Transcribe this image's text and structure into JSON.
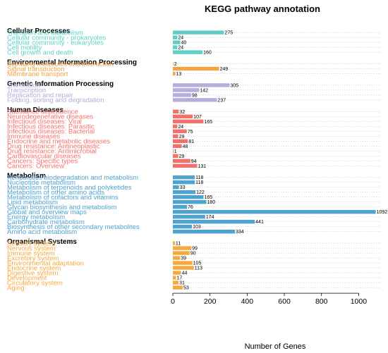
{
  "chart_data": {
    "type": "bar",
    "orientation": "horizontal",
    "title": "KEGG pathway annotation",
    "xlabel": "Number of Genes",
    "ylabel": "",
    "xlim": [
      0,
      1120
    ],
    "xticks": [
      0,
      200,
      400,
      600,
      800,
      1000
    ],
    "grid": "dotted horizontal row lines",
    "legend": "none",
    "groups": [
      {
        "name": "Cellular Processes",
        "color": "#5ecfc4",
        "items": [
          {
            "label": "Transport and catabolism",
            "value": 275
          },
          {
            "label": "Cellular community - prokaryotes",
            "value": 24
          },
          {
            "label": "Cellular community - eukaryotes",
            "value": 40
          },
          {
            "label": "Cell motility",
            "value": 24
          },
          {
            "label": "Cell growth and death",
            "value": 160
          }
        ]
      },
      {
        "name": "Environmental Information Processing",
        "color": "#f3a545",
        "items": [
          {
            "label": "Signaling molecules and interaction",
            "value": 2
          },
          {
            "label": "Signal transduction",
            "value": 249
          },
          {
            "label": "Membrane transport",
            "value": 13
          }
        ]
      },
      {
        "name": "Genetic Information Processing",
        "color": "#b3aedb",
        "items": [
          {
            "label": "Translation",
            "value": 305
          },
          {
            "label": "Transcription",
            "value": 142
          },
          {
            "label": "Replication and repair",
            "value": 98
          },
          {
            "label": "Folding, sorting and degradation",
            "value": 237
          }
        ]
      },
      {
        "name": "Human Diseases",
        "color": "#f4706a",
        "items": [
          {
            "label": "Substance dependence",
            "value": 32
          },
          {
            "label": "Neurodegenerative diseases",
            "value": 107
          },
          {
            "label": "Infectious diseases: Viral",
            "value": 165
          },
          {
            "label": "Infectious diseases: Parasitic",
            "value": 24
          },
          {
            "label": "Infectious diseases: Bacterial",
            "value": 75
          },
          {
            "label": "Immune diseases",
            "value": 29
          },
          {
            "label": "Endocrine and metabolic diseases",
            "value": 81
          },
          {
            "label": "Drug resistance: Antineoplastic",
            "value": 48
          },
          {
            "label": "Drug resistance: Antimicrobial",
            "value": 1
          },
          {
            "label": "Cardiovascular diseases",
            "value": 29
          },
          {
            "label": "Cancers: Specific types",
            "value": 94
          },
          {
            "label": "Cancers: Overview",
            "value": 131
          }
        ]
      },
      {
        "name": "Metabolism",
        "color": "#4fa3d1",
        "items": [
          {
            "label": "Xenobiotics biodegradation and metabolism",
            "value": 118
          },
          {
            "label": "Nucleotide metabolism",
            "value": 118
          },
          {
            "label": "Metabolism of terpenoids and polyketides",
            "value": 33
          },
          {
            "label": "Metabolism of other amino acids",
            "value": 122
          },
          {
            "label": "Metabolism of cofactors and vitamins",
            "value": 165
          },
          {
            "label": "Lipid metabolism",
            "value": 180
          },
          {
            "label": "Glycan biosynthesis and metabolism",
            "value": 76
          },
          {
            "label": "Global and overview maps",
            "value": 1092
          },
          {
            "label": "Energy metabolism",
            "value": 174
          },
          {
            "label": "Carbohydrate metabolism",
            "value": 441
          },
          {
            "label": "Biosynthesis of other secondary metabolites",
            "value": 103
          },
          {
            "label": "Amino acid metabolism",
            "value": 334
          }
        ]
      },
      {
        "name": "Organismal Systems",
        "color": "#f7a93e",
        "items": [
          {
            "label": "Sensory system",
            "value": 11
          },
          {
            "label": "Nervous system",
            "value": 99
          },
          {
            "label": "Immune system",
            "value": 90
          },
          {
            "label": "Excretory system",
            "value": 39
          },
          {
            "label": "Environmental adaptation",
            "value": 105
          },
          {
            "label": "Endocrine system",
            "value": 113
          },
          {
            "label": "Digestive system",
            "value": 44
          },
          {
            "label": "Development",
            "value": 17
          },
          {
            "label": "Circulatory system",
            "value": 31
          },
          {
            "label": "Aging",
            "value": 53
          }
        ]
      }
    ]
  }
}
